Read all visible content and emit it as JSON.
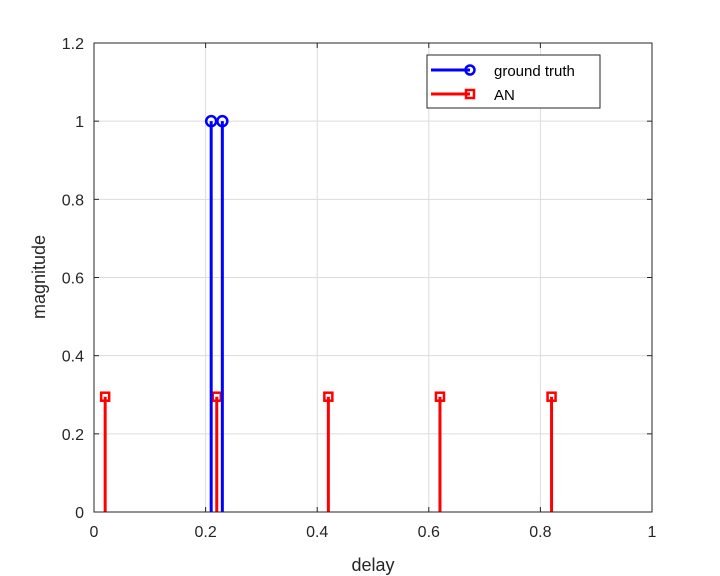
{
  "chart_data": {
    "type": "stem",
    "xlabel": "delay",
    "ylabel": "magnitude",
    "xlim": [
      0,
      1
    ],
    "ylim": [
      0,
      1.2
    ],
    "x_ticks": [
      "0",
      "0.2",
      "0.4",
      "0.6",
      "0.8",
      "1"
    ],
    "y_ticks": [
      "0",
      "0.2",
      "0.4",
      "0.6",
      "0.8",
      "1",
      "1.2"
    ],
    "grid": true,
    "legend_position": "top-right",
    "series": [
      {
        "name": "ground truth",
        "color": "#0000ff",
        "marker": "circle",
        "x": [
          0.21,
          0.23
        ],
        "y": [
          1,
          1
        ]
      },
      {
        "name": "AN",
        "color": "#ff0000",
        "marker": "square",
        "x": [
          0.02,
          0.22,
          0.42,
          0.62,
          0.82
        ],
        "y": [
          0.295,
          0.295,
          0.295,
          0.295,
          0.295
        ]
      }
    ]
  }
}
